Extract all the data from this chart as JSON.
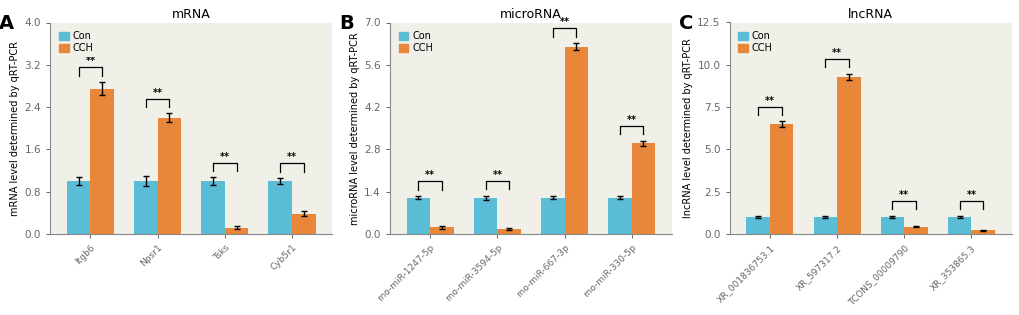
{
  "panel_A": {
    "title": "mRNA",
    "ylabel": "mRNA level determined by qRT-PCR",
    "categories": [
      "Itgb6",
      "Npsr1",
      "Tsks",
      "Cyb5r1"
    ],
    "con_values": [
      1.0,
      1.0,
      1.0,
      1.0
    ],
    "cch_values": [
      2.75,
      2.2,
      0.12,
      0.38
    ],
    "con_errors": [
      0.07,
      0.1,
      0.07,
      0.06
    ],
    "cch_errors": [
      0.12,
      0.08,
      0.03,
      0.05
    ],
    "ylim": [
      0,
      4.0
    ],
    "yticks": [
      0.0,
      0.8,
      1.6,
      2.4,
      3.2,
      4.0
    ],
    "ytick_labels": [
      "0.0",
      "0.8",
      "1.6",
      "2.4",
      "3.2",
      "4.0"
    ],
    "label": "A"
  },
  "panel_B": {
    "title": "microRNA",
    "ylabel": "microRNA level determined by qRT-PCR",
    "categories": [
      "rno-miR-1247-5p",
      "rno-miR-3594-5p",
      "rno-miR-667-3p",
      "rno-miR-330-5p"
    ],
    "con_values": [
      1.2,
      1.2,
      1.2,
      1.2
    ],
    "cch_values": [
      0.22,
      0.15,
      6.2,
      3.0
    ],
    "con_errors": [
      0.06,
      0.07,
      0.06,
      0.05
    ],
    "cch_errors": [
      0.05,
      0.03,
      0.12,
      0.09
    ],
    "ylim": [
      0,
      7.0
    ],
    "yticks": [
      0.0,
      1.4,
      2.8,
      4.2,
      5.6,
      7.0
    ],
    "ytick_labels": [
      "0.0",
      "1.4",
      "2.8",
      "4.2",
      "5.6",
      "7.0"
    ],
    "label": "B"
  },
  "panel_C": {
    "title": "lncRNA",
    "ylabel": "lncRNA level determined by qRT-PCR",
    "categories": [
      "XR_001836753.1",
      "XR_597317.2",
      "TCONS_00009790",
      "XR_353865.3"
    ],
    "con_values": [
      1.0,
      1.0,
      1.0,
      1.0
    ],
    "cch_values": [
      6.5,
      9.3,
      0.42,
      0.22
    ],
    "con_errors": [
      0.07,
      0.08,
      0.07,
      0.07
    ],
    "cch_errors": [
      0.15,
      0.18,
      0.04,
      0.03
    ],
    "ylim": [
      0,
      12.5
    ],
    "yticks": [
      0.0,
      2.5,
      5.0,
      7.5,
      10.0,
      12.5
    ],
    "ytick_labels": [
      "0.0",
      "2.5",
      "5.0",
      "7.5",
      "10.0",
      "12.5"
    ],
    "label": "C"
  },
  "con_color": "#5BBCD6",
  "cch_color": "#E8873A",
  "bar_width": 0.35,
  "capsize": 2.5,
  "elinewidth": 1.0,
  "sig_text": "**",
  "fig_facecolor": "#FFFFFF",
  "ax_facecolor": "#F0EFE8",
  "axis_color": "#666666",
  "spine_color": "#888888"
}
